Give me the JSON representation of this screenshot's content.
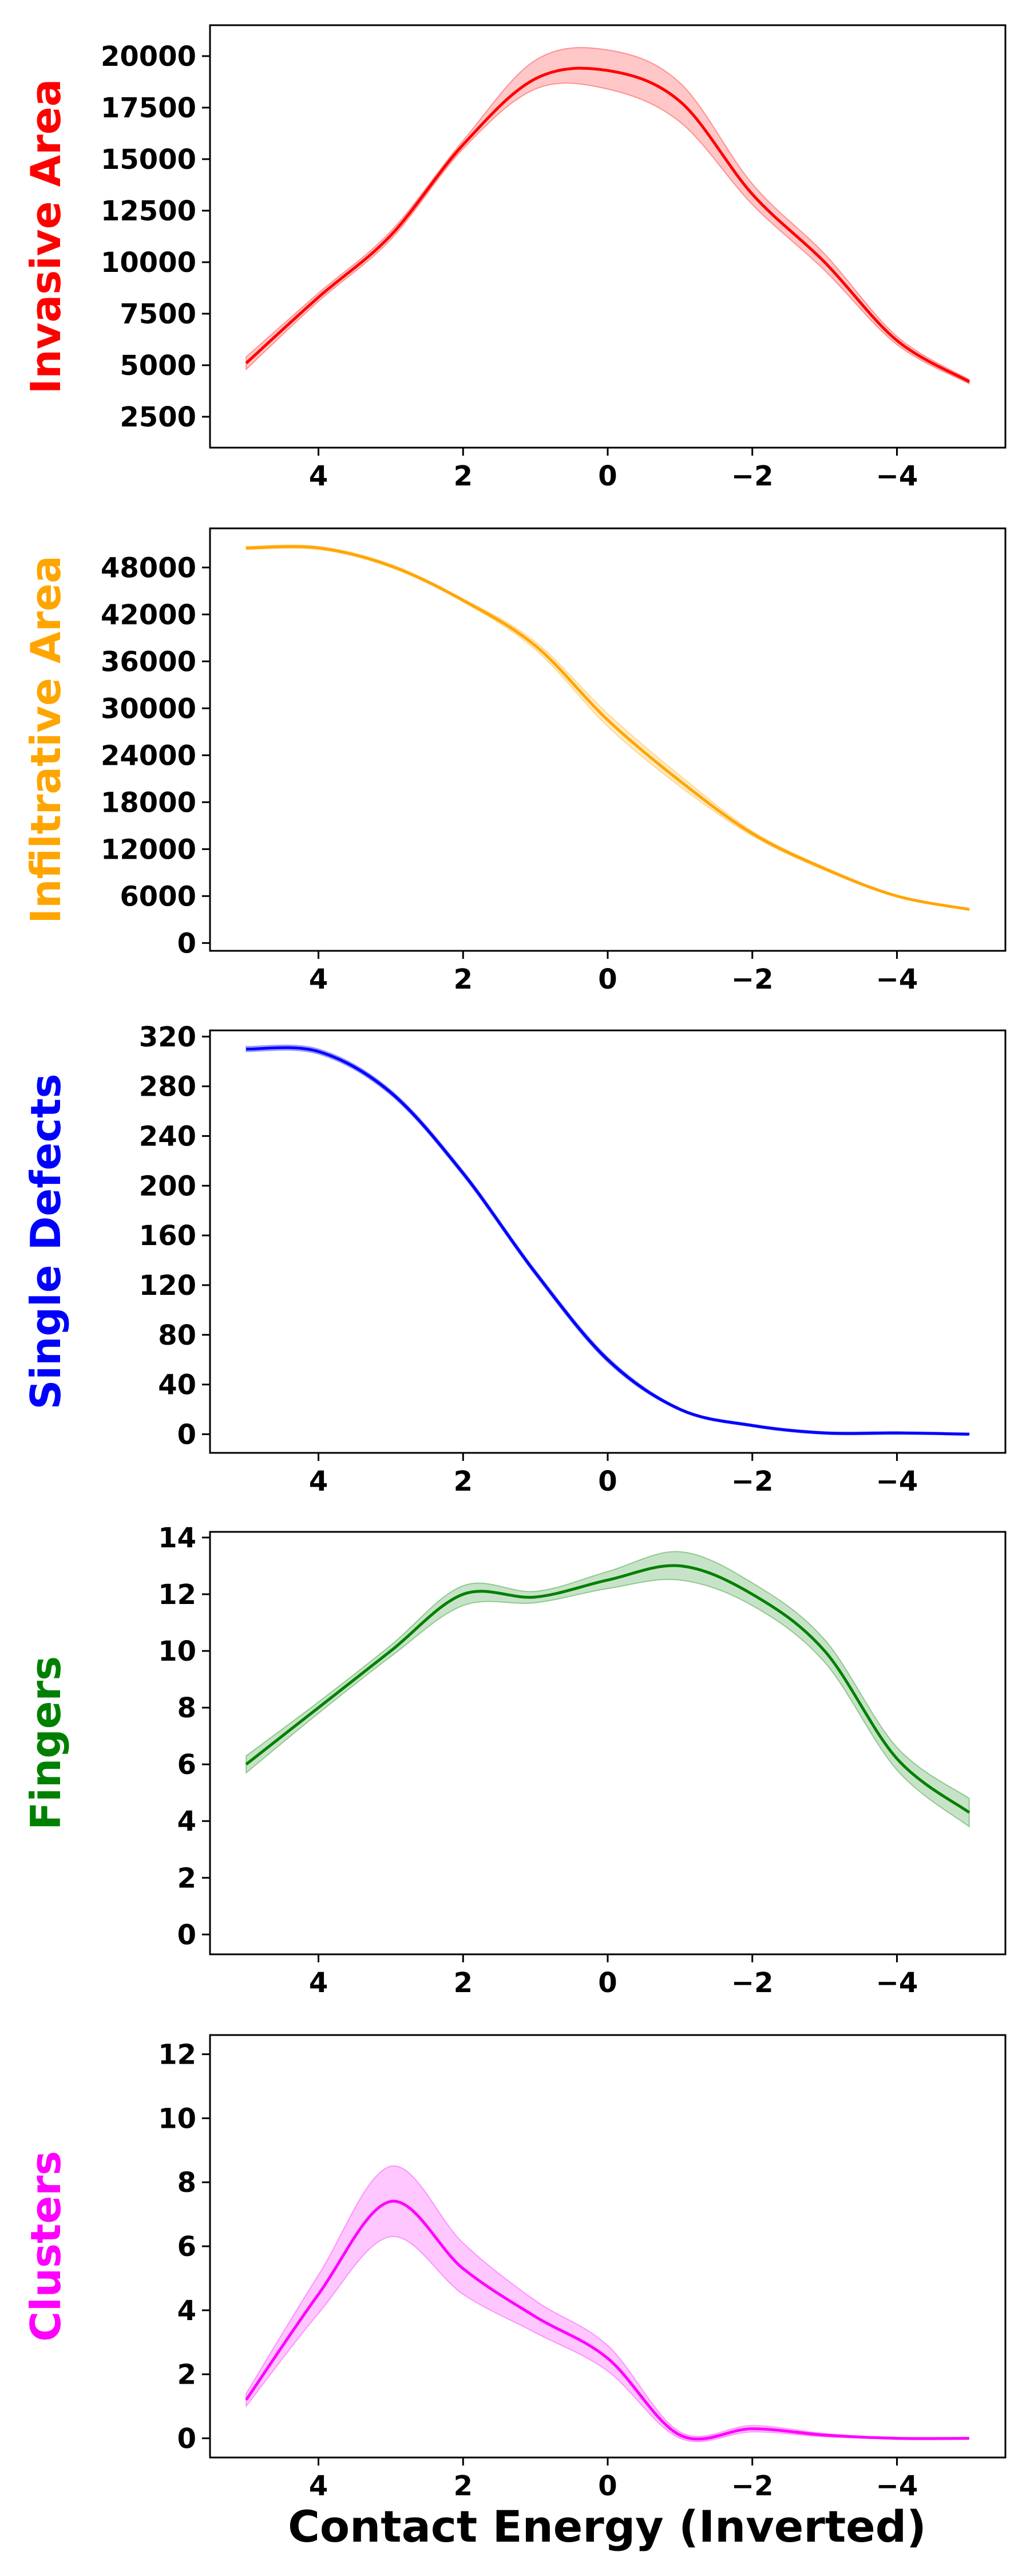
{
  "chart_data": [
    {
      "type": "line",
      "ylabel": "Invasive Area",
      "color": "#ff0000",
      "xlim": [
        5.5,
        -5.5
      ],
      "ylim": [
        1000,
        21500
      ],
      "x_inverted": true,
      "xticks": [
        4,
        2,
        0,
        -2,
        -4
      ],
      "xtick_labels": [
        "4",
        "2",
        "0",
        "−2",
        "−4"
      ],
      "yticks": [
        2500,
        5000,
        7500,
        10000,
        12500,
        15000,
        17500,
        20000
      ],
      "ytick_labels": [
        "2500",
        "5000",
        "7500",
        "10000",
        "12500",
        "15000",
        "17500",
        "20000"
      ],
      "series": [
        {
          "x": [
            5,
            4,
            3,
            2,
            1,
            0,
            -1,
            -2,
            -3,
            -4,
            -5
          ],
          "y": [
            5100,
            8300,
            11300,
            15700,
            18900,
            19300,
            17800,
            13300,
            10000,
            6200,
            4200
          ],
          "lower": [
            4800,
            8100,
            11100,
            15500,
            18400,
            18400,
            16800,
            12800,
            9600,
            6000,
            4100
          ],
          "upper": [
            5400,
            8500,
            11500,
            15900,
            19800,
            20300,
            18700,
            13800,
            10400,
            6400,
            4300
          ]
        }
      ]
    },
    {
      "type": "line",
      "ylabel": "Infiltrative Area",
      "color": "#ffa500",
      "xlim": [
        5.5,
        -5.5
      ],
      "ylim": [
        -1000,
        53000
      ],
      "x_inverted": true,
      "xticks": [
        4,
        2,
        0,
        -2,
        -4
      ],
      "xtick_labels": [
        "4",
        "2",
        "0",
        "−2",
        "−4"
      ],
      "yticks": [
        0,
        6000,
        12000,
        18000,
        24000,
        30000,
        36000,
        42000,
        48000
      ],
      "ytick_labels": [
        "0",
        "6000",
        "12000",
        "18000",
        "24000",
        "30000",
        "36000",
        "42000",
        "48000"
      ],
      "series": [
        {
          "x": [
            5,
            4,
            3,
            2,
            1,
            0,
            -1,
            -2,
            -3,
            -4,
            -5
          ],
          "y": [
            50500,
            50500,
            48200,
            43800,
            38000,
            28500,
            20700,
            14000,
            9500,
            6000,
            4300
          ],
          "lower": [
            50300,
            50300,
            48000,
            43600,
            37500,
            27700,
            20000,
            13700,
            9300,
            5900,
            4200
          ],
          "upper": [
            50700,
            50700,
            48400,
            44000,
            38500,
            29300,
            21400,
            14300,
            9700,
            6100,
            4400
          ]
        }
      ]
    },
    {
      "type": "line",
      "ylabel": "Single Defects",
      "color": "#0000ff",
      "xlim": [
        5.5,
        -5.5
      ],
      "ylim": [
        -15,
        325
      ],
      "x_inverted": true,
      "xticks": [
        4,
        2,
        0,
        -2,
        -4
      ],
      "xtick_labels": [
        "4",
        "2",
        "0",
        "−2",
        "−4"
      ],
      "yticks": [
        0,
        40,
        80,
        120,
        160,
        200,
        240,
        280,
        320
      ],
      "ytick_labels": [
        "0",
        "40",
        "80",
        "120",
        "160",
        "200",
        "240",
        "280",
        "320"
      ],
      "series": [
        {
          "x": [
            5,
            4,
            3,
            2,
            1,
            0,
            -1,
            -2,
            -3,
            -4,
            -5
          ],
          "y": [
            310,
            308,
            275,
            210,
            130,
            60,
            20,
            7,
            1,
            1,
            0
          ],
          "lower": [
            308,
            306,
            273,
            208,
            128,
            58,
            19,
            6,
            0,
            0,
            0
          ],
          "upper": [
            312,
            310,
            277,
            212,
            132,
            62,
            21,
            8,
            2,
            2,
            1
          ]
        }
      ]
    },
    {
      "type": "line",
      "ylabel": "Fingers",
      "color": "#008000",
      "xlim": [
        5.5,
        -5.5
      ],
      "ylim": [
        -0.7,
        14.2
      ],
      "x_inverted": true,
      "xticks": [
        4,
        2,
        0,
        -2,
        -4
      ],
      "xtick_labels": [
        "4",
        "2",
        "0",
        "−2",
        "−4"
      ],
      "yticks": [
        0,
        2,
        4,
        6,
        8,
        10,
        12,
        14
      ],
      "ytick_labels": [
        "0",
        "2",
        "4",
        "6",
        "8",
        "10",
        "12",
        "14"
      ],
      "series": [
        {
          "x": [
            5,
            4,
            3,
            2,
            1,
            0,
            -1,
            -2,
            -3,
            -4,
            -5
          ],
          "y": [
            6.0,
            8.0,
            10.0,
            12.0,
            11.9,
            12.5,
            13.0,
            12.0,
            10.0,
            6.2,
            4.3
          ],
          "lower": [
            5.7,
            7.8,
            9.8,
            11.6,
            11.7,
            12.2,
            12.5,
            11.6,
            9.6,
            5.8,
            3.8
          ],
          "upper": [
            6.3,
            8.2,
            10.2,
            12.3,
            12.1,
            12.8,
            13.5,
            12.4,
            10.4,
            6.6,
            4.8
          ]
        }
      ]
    },
    {
      "type": "line",
      "ylabel": "Clusters",
      "color": "#ff00ff",
      "xlabel": "Contact Energy (Inverted)",
      "xlim": [
        5.5,
        -5.5
      ],
      "ylim": [
        -0.6,
        12.6
      ],
      "x_inverted": true,
      "xticks": [
        4,
        2,
        0,
        -2,
        -4
      ],
      "xtick_labels": [
        "4",
        "2",
        "0",
        "−2",
        "−4"
      ],
      "yticks": [
        0,
        2,
        4,
        6,
        8,
        10,
        12
      ],
      "ytick_labels": [
        "0",
        "2",
        "4",
        "6",
        "8",
        "10",
        "12"
      ],
      "series": [
        {
          "x": [
            5,
            4,
            3,
            2,
            1,
            0,
            -1,
            -2,
            -3,
            -4,
            -5
          ],
          "y": [
            1.2,
            4.5,
            7.4,
            5.3,
            3.8,
            2.5,
            0.1,
            0.3,
            0.1,
            0.0,
            0.0
          ],
          "lower": [
            1.0,
            3.9,
            6.3,
            4.5,
            3.3,
            2.1,
            0.0,
            0.2,
            0.05,
            0.0,
            0.0
          ],
          "upper": [
            1.4,
            5.1,
            8.5,
            6.1,
            4.3,
            2.9,
            0.2,
            0.4,
            0.15,
            0.0,
            0.0
          ]
        }
      ]
    }
  ]
}
